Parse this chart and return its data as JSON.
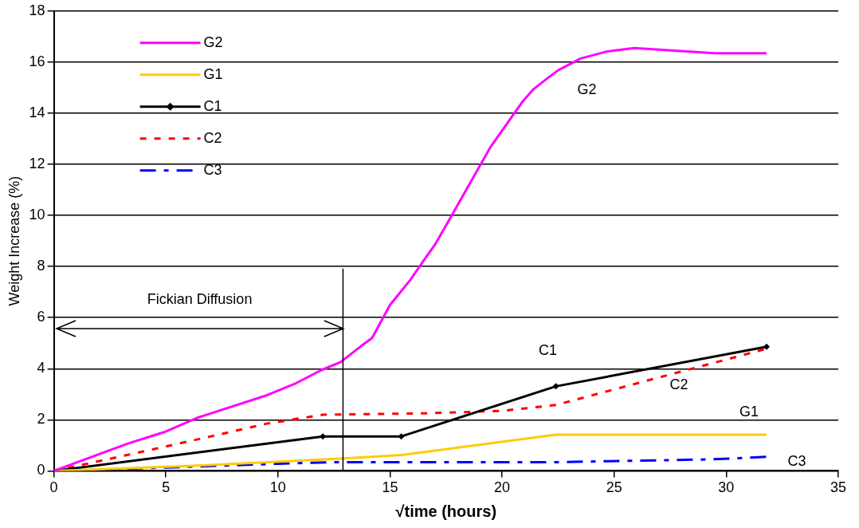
{
  "chart_data": {
    "type": "line",
    "xlabel": "√time (hours)",
    "ylabel": "Weight Increase (%)",
    "xlim": [
      0,
      35
    ],
    "xticks": [
      0,
      5,
      10,
      15,
      20,
      25,
      30,
      35
    ],
    "ylim": [
      0,
      18
    ],
    "yticks": [
      0,
      2,
      4,
      6,
      8,
      10,
      12,
      14,
      16,
      18
    ],
    "grid": "y",
    "legend": "top left",
    "series": [
      {
        "name": "G2",
        "color": "#ff00ff",
        "line_style": "solid",
        "marker": "none",
        "x": [
          0,
          3.3,
          4.9,
          6.4,
          9.4,
          10.8,
          11.9,
          12.8,
          13.7,
          14.2,
          15.0,
          15.9,
          16.6,
          17.0,
          17.7,
          19.5,
          20.9,
          21.4,
          22.0,
          22.5,
          23.5,
          24.7,
          25.9,
          29.5,
          31.8
        ],
        "values": [
          0,
          1.07,
          1.51,
          2.08,
          2.93,
          3.43,
          3.93,
          4.26,
          4.88,
          5.2,
          6.5,
          7.47,
          8.36,
          8.85,
          9.92,
          12.7,
          14.44,
          14.94,
          15.35,
          15.68,
          16.14,
          16.42,
          16.55,
          16.35,
          16.35
        ]
      },
      {
        "name": "G1",
        "color": "#ffcc00",
        "line_style": "solid",
        "marker": "none",
        "x": [
          0,
          6.2,
          12.8,
          15.5,
          22.4,
          31.8
        ],
        "values": [
          0,
          0.2,
          0.48,
          0.62,
          1.42,
          1.42
        ]
      },
      {
        "name": "C1",
        "color": "#000000",
        "line_style": "solid",
        "marker": "diamond",
        "x": [
          0,
          12.0,
          15.5,
          22.4,
          31.8
        ],
        "values": [
          0,
          1.35,
          1.35,
          3.31,
          4.86
        ]
      },
      {
        "name": "C2",
        "color": "#ff0000",
        "line_style": "dotted",
        "marker": "none",
        "x": [
          0,
          1.8,
          4.4,
          7.0,
          9.5,
          11.3,
          12.0,
          16.5,
          20.0,
          22.4,
          31.8
        ],
        "values": [
          0,
          0.34,
          0.84,
          1.35,
          1.85,
          2.1,
          2.2,
          2.25,
          2.35,
          2.58,
          4.78
        ]
      },
      {
        "name": "C3",
        "color": "#0000ff",
        "line_style": "dashed",
        "marker": "none",
        "x": [
          0,
          5,
          10,
          12.4,
          22.4,
          26,
          29.3,
          31.8
        ],
        "values": [
          0,
          0.13,
          0.28,
          0.34,
          0.34,
          0.4,
          0.45,
          0.55
        ]
      }
    ],
    "ref_lines": [
      {
        "axis": "x",
        "value": 12.9
      }
    ],
    "annotations": [
      "Fickian Diffusion"
    ]
  }
}
